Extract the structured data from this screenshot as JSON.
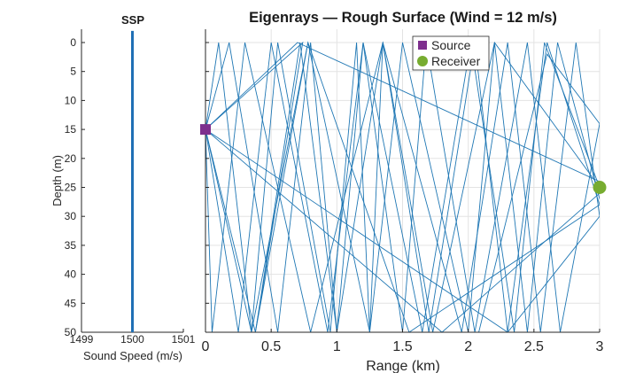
{
  "chart_data": [
    {
      "type": "line",
      "title": "SSP",
      "xlabel": "Sound Speed (m/s)",
      "ylabel": "Depth (m)",
      "xlim": [
        1499,
        1501
      ],
      "ylim": [
        0,
        50
      ],
      "y_reversed": true,
      "grid": false,
      "xticks": [
        1499,
        1500,
        1501
      ],
      "yticks": [
        0,
        5,
        10,
        15,
        20,
        25,
        30,
        35,
        40,
        45,
        50
      ],
      "series": [
        {
          "x": [
            1500,
            1500
          ],
          "y": [
            -2,
            50
          ],
          "color": "#1f6fb5"
        }
      ]
    },
    {
      "type": "line",
      "title": "Eigenrays — Rough Surface (Wind = 12 m/s)",
      "xlabel": "Range (km)",
      "ylabel": "",
      "xlim": [
        0,
        3
      ],
      "ylim": [
        0,
        50
      ],
      "y_reversed": true,
      "grid": true,
      "xticks": [
        0,
        0.5,
        1,
        1.5,
        2,
        2.5,
        3
      ],
      "ray_color": "#1f77b4",
      "legend": {
        "placement": "top-right",
        "entries": [
          {
            "label": "Source",
            "marker": "square",
            "color": "#7e2f8e"
          },
          {
            "label": "Receiver",
            "marker": "circle",
            "color": "#77ac30"
          }
        ]
      },
      "source": {
        "x": 0,
        "y": 15
      },
      "receiver": {
        "x": 3,
        "y": 25
      },
      "rays": [
        [
          [
            0,
            15
          ],
          [
            1.8,
            50
          ],
          [
            3,
            26
          ]
        ],
        [
          [
            0,
            15
          ],
          [
            2.3,
            50
          ],
          [
            3,
            30
          ]
        ],
        [
          [
            0,
            15
          ],
          [
            0.7,
            0
          ],
          [
            3,
            24
          ]
        ],
        [
          [
            0,
            15
          ],
          [
            0.74,
            0
          ],
          [
            0.38,
            50
          ],
          [
            0.78,
            0
          ],
          [
            1.55,
            50
          ],
          [
            3,
            28
          ]
        ],
        [
          [
            0,
            15
          ],
          [
            0.1,
            0
          ],
          [
            0.35,
            50
          ],
          [
            0.55,
            0
          ],
          [
            0.95,
            50
          ],
          [
            1.15,
            0
          ],
          [
            1.25,
            50
          ],
          [
            1.35,
            0
          ],
          [
            1.73,
            50
          ],
          [
            2.2,
            0
          ],
          [
            3,
            25
          ]
        ],
        [
          [
            0,
            15
          ],
          [
            0.18,
            0
          ],
          [
            0.55,
            50
          ],
          [
            0.8,
            0
          ],
          [
            1.0,
            50
          ],
          [
            1.2,
            0
          ],
          [
            1.5,
            50
          ],
          [
            1.68,
            0
          ],
          [
            2.05,
            50
          ],
          [
            2.45,
            0
          ],
          [
            2.7,
            50
          ],
          [
            3,
            14
          ]
        ],
        [
          [
            0,
            15
          ],
          [
            0.05,
            50
          ],
          [
            0.3,
            0
          ],
          [
            0.8,
            50
          ],
          [
            1.35,
            0
          ],
          [
            1.95,
            50
          ],
          [
            2.3,
            0
          ],
          [
            2.55,
            50
          ],
          [
            2.82,
            0
          ],
          [
            3,
            30
          ]
        ],
        [
          [
            0,
            15
          ],
          [
            0.25,
            50
          ],
          [
            0.5,
            0
          ],
          [
            0.93,
            50
          ],
          [
            1.2,
            0
          ],
          [
            1.65,
            50
          ],
          [
            2.02,
            0
          ],
          [
            2.35,
            50
          ],
          [
            2.58,
            0
          ],
          [
            3,
            25
          ]
        ],
        [
          [
            0,
            15
          ],
          [
            0.38,
            50
          ],
          [
            0.72,
            0
          ],
          [
            1.0,
            50
          ],
          [
            1.35,
            0
          ],
          [
            1.7,
            50
          ],
          [
            2.05,
            0
          ],
          [
            2.3,
            50
          ],
          [
            2.6,
            0
          ],
          [
            3,
            28
          ]
        ],
        [
          [
            0,
            15
          ],
          [
            0.35,
            50
          ],
          [
            0.78,
            0
          ],
          [
            1.25,
            50
          ],
          [
            1.5,
            0
          ],
          [
            2.0,
            50
          ],
          [
            2.2,
            0
          ],
          [
            2.45,
            50
          ],
          [
            2.68,
            0
          ],
          [
            3,
            27
          ]
        ],
        [
          [
            2.08,
            50
          ],
          [
            2.6,
            2
          ],
          [
            3,
            14
          ]
        ]
      ]
    }
  ]
}
